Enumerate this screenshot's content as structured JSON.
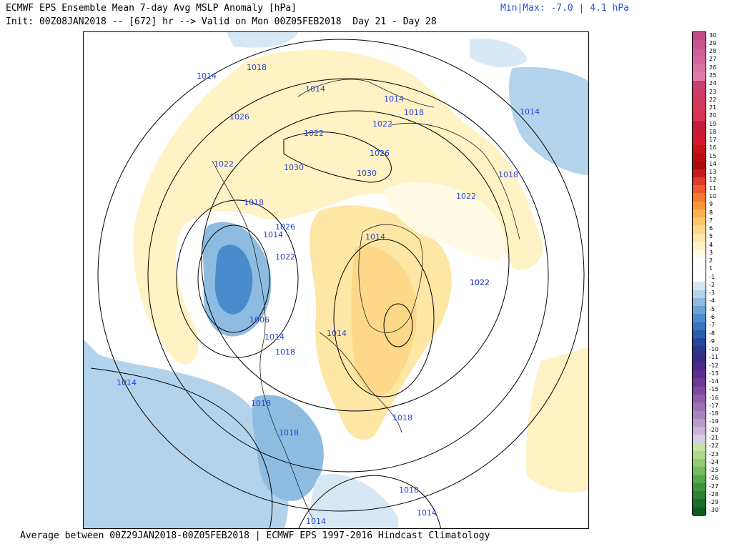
{
  "header": {
    "title": "ECMWF EPS Ensemble Mean 7-day Avg MSLP Anomaly [hPa]",
    "init": "Init: 00Z08JAN2018 -- [672] hr --> Valid on Mon 00Z05FEB2018  Day 21 - Day 28",
    "minmax": "Min|Max: -7.0 | 4.1 hPa"
  },
  "footer": {
    "text": "Average between 00Z29JAN2018-00Z05FEB2018 | ECMWF EPS 1997-2016 Hindcast Climatology"
  },
  "map": {
    "isobar_labels": [
      "1014",
      "1018",
      "1014",
      "1014",
      "1018",
      "1014",
      "1026",
      "1022",
      "1022",
      "1022",
      "1030",
      "1030",
      "1026",
      "1018",
      "1022",
      "1018",
      "1022",
      "1014",
      "1026",
      "1014",
      "1022",
      "1022",
      "1006",
      "1014",
      "1014",
      "1018",
      "1014",
      "1018",
      "1018",
      "1018",
      "1018",
      "1014",
      "1014"
    ]
  },
  "colorbar": {
    "labels": [
      "30",
      "29",
      "28",
      "27",
      "26",
      "25",
      "24",
      "23",
      "22",
      "21",
      "20",
      "19",
      "18",
      "17",
      "16",
      "15",
      "14",
      "13",
      "12",
      "11",
      "10",
      "9",
      "8",
      "7",
      "6",
      "5",
      "4",
      "3",
      "2",
      "1",
      "-1",
      "-2",
      "-3",
      "-4",
      "-5",
      "-6",
      "-7",
      "-8",
      "-9",
      "-10",
      "-11",
      "-12",
      "-13",
      "-14",
      "-15",
      "-16",
      "-17",
      "-18",
      "-19",
      "-20",
      "-21",
      "-22",
      "-23",
      "-24",
      "-25",
      "-26",
      "-27",
      "-28",
      "-29",
      "-30"
    ],
    "colors": [
      "#c44a8a",
      "#c9558f",
      "#cf6097",
      "#d4689d",
      "#da72a3",
      "#df7aa9",
      "#c84070",
      "#cd3d68",
      "#d23a5f",
      "#d63657",
      "#db324f",
      "#bf1f3a",
      "#c91c34",
      "#d4192e",
      "#c81414",
      "#b81010",
      "#a80c0c",
      "#c71c1c",
      "#df3a24",
      "#ee5a2c",
      "#f7792e",
      "#fb9539",
      "#fcb04f",
      "#fdc56a",
      "#fdd888",
      "#fee7a5",
      "#fff2c4",
      "#fffbe5",
      "#ffffff",
      "#ffffff",
      "#ffffff",
      "#d7e8f5",
      "#b3d3ec",
      "#8ebce1",
      "#6aa4d5",
      "#4a8ccb",
      "#3776be",
      "#2a5fae",
      "#22499c",
      "#2a3888",
      "#3a2c86",
      "#4b2a8a",
      "#5d2d90",
      "#6e3a96",
      "#7f4a9e",
      "#8e5ca8",
      "#9c70b2",
      "#a985bd",
      "#b89cc9",
      "#c8b4d6",
      "#d5cfe6",
      "#c6e3a6",
      "#aed88c",
      "#93ca73",
      "#76bb5d",
      "#5aa84b",
      "#3f953d",
      "#2b8032",
      "#1c6b28",
      "#0f5a20",
      "#0a4a18"
    ]
  }
}
